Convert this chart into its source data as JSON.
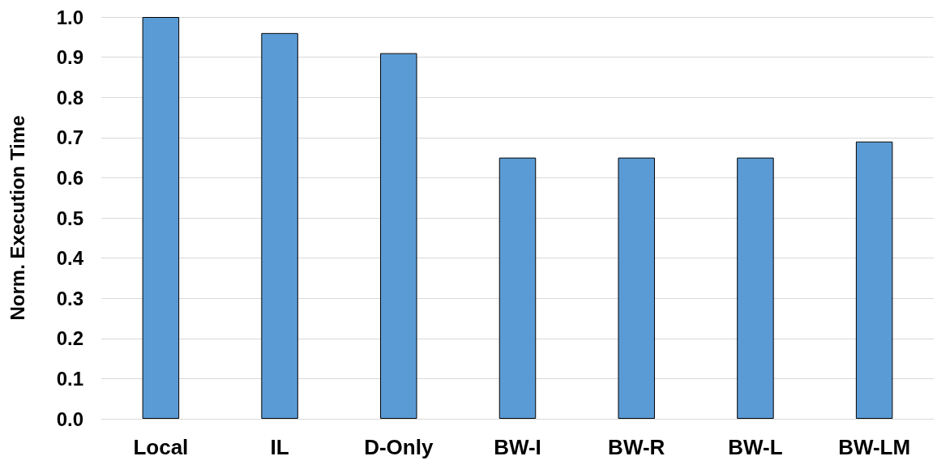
{
  "chart_data": {
    "type": "bar",
    "ylabel": "Norm. Execution Time",
    "categories": [
      "Local",
      "IL",
      "D-Only",
      "BW-I",
      "BW-R",
      "BW-L",
      "BW-LM"
    ],
    "values": [
      1.0,
      0.96,
      0.91,
      0.65,
      0.65,
      0.65,
      0.69
    ],
    "color": "#5b9bd5",
    "ylim": [
      0,
      1.0
    ],
    "yticks": [
      {
        "value": 0,
        "label": "0.0"
      },
      0.1,
      0.2,
      0.3,
      0.4,
      0.5,
      0.6,
      0.7,
      0.8,
      0.9,
      {
        "value": 1,
        "label": "1.0"
      }
    ],
    "grid": "y"
  }
}
